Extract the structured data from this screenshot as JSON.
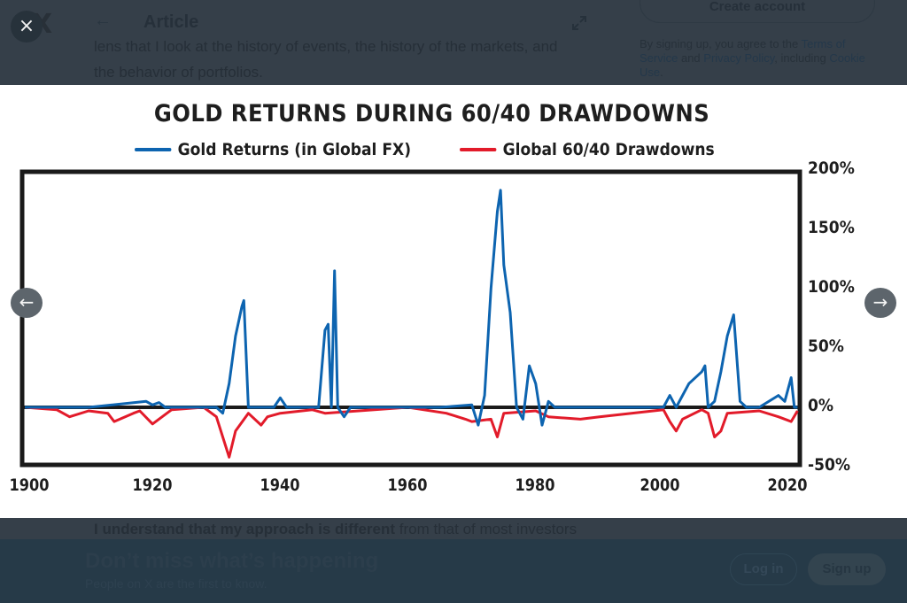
{
  "header": {
    "close_icon": "×",
    "back_icon": "←",
    "title": "Article",
    "expand_icon": "expand-diagonal"
  },
  "article": {
    "line1": "lens that I look at the history of events, the history of the markets, and",
    "line2": "the behavior of portfolios.",
    "bottom_bold": "I understand that my approach is different",
    "bottom_rest": " from that of most investors"
  },
  "sidebar": {
    "create_account": "Create account",
    "terms_pre": "By signing up, you agree to the ",
    "terms_link1": "Terms of Service",
    "terms_and": " and ",
    "terms_link2": "Privacy Policy",
    "terms_mid": ", including ",
    "terms_link3": "Cookie Use",
    "terms_end": "."
  },
  "viewer": {
    "prev_icon": "←",
    "next_icon": "→"
  },
  "signup_bar": {
    "headline": "Don’t miss what’s happening",
    "subtext": "People on X are the first to know.",
    "login": "Log in",
    "signup": "Sign up"
  },
  "colors": {
    "gold_series": "#0d64b0",
    "drawdown_series": "#e21b2a",
    "axis": "#1a1a1a"
  },
  "chart_data": {
    "type": "line",
    "title": "GOLD RETURNS DURING 60/40 DRAWDOWNS",
    "xlabel": "",
    "ylabel": "",
    "xlim": [
      1900,
      2021
    ],
    "ylim": [
      -50,
      200
    ],
    "x_ticks": [
      "1900",
      "1920",
      "1940",
      "1960",
      "1980",
      "2000",
      "2020"
    ],
    "y_ticks": [
      "200%",
      "150%",
      "100%",
      "50%",
      "0%",
      "-50%"
    ],
    "y_axis_position": "right",
    "grid": false,
    "legend": [
      "Gold Returns (in Global FX)",
      "Global 60/40 Drawdowns"
    ],
    "legend_position": "top",
    "series": [
      {
        "name": "Gold Returns (in Global FX)",
        "x": [
          1900,
          1910,
          1919,
          1920,
          1921,
          1922,
          1930,
          1931,
          1932,
          1933,
          1934,
          1934.3,
          1935,
          1939,
          1940,
          1941,
          1946,
          1947,
          1947.5,
          1948,
          1948.5,
          1949,
          1950,
          1951,
          1960,
          1965,
          1970,
          1971,
          1972,
          1973,
          1974,
          1974.5,
          1975,
          1976,
          1977,
          1978,
          1979,
          1980,
          1981,
          1982,
          1983,
          1990,
          2000,
          2001,
          2002,
          2004,
          2006,
          2006.5,
          2007,
          2008,
          2009,
          2010,
          2011,
          2012,
          2013,
          2015,
          2018,
          2019,
          2020,
          2020.5,
          2021
        ],
        "values": [
          0,
          0,
          5,
          2,
          4,
          0,
          0,
          -5,
          20,
          60,
          85,
          90,
          0,
          0,
          8,
          0,
          0,
          65,
          70,
          0,
          115,
          0,
          -8,
          0,
          0,
          0,
          2,
          -15,
          10,
          100,
          165,
          183,
          120,
          80,
          0,
          -10,
          35,
          20,
          -15,
          5,
          0,
          0,
          0,
          10,
          0,
          20,
          30,
          35,
          0,
          5,
          30,
          60,
          78,
          5,
          0,
          0,
          10,
          5,
          25,
          0,
          0
        ]
      },
      {
        "name": "Global 60/40 Drawdowns",
        "x": [
          1900,
          1905,
          1907,
          1910,
          1913,
          1914,
          1917,
          1918,
          1920,
          1921,
          1923,
          1928,
          1930,
          1931,
          1932,
          1933,
          1935,
          1937,
          1938,
          1940,
          1945,
          1947,
          1960,
          1966,
          1969,
          1970,
          1973,
          1974,
          1975,
          1980,
          1982,
          1987,
          1990,
          2000,
          2001,
          2002,
          2003,
          2006,
          2007,
          2008,
          2009,
          2010,
          2015,
          2018,
          2020,
          2021
        ],
        "values": [
          0,
          -2,
          -8,
          -3,
          -5,
          -12,
          -5,
          -3,
          -14,
          -10,
          -2,
          0,
          -8,
          -25,
          -42,
          -20,
          -5,
          -15,
          -8,
          -5,
          -2,
          -5,
          0,
          -5,
          -10,
          -12,
          -10,
          -25,
          -5,
          -3,
          -8,
          -10,
          -8,
          -2,
          -12,
          -20,
          -10,
          -2,
          -5,
          -25,
          -20,
          -5,
          -3,
          -8,
          -12,
          -3
        ]
      }
    ]
  }
}
